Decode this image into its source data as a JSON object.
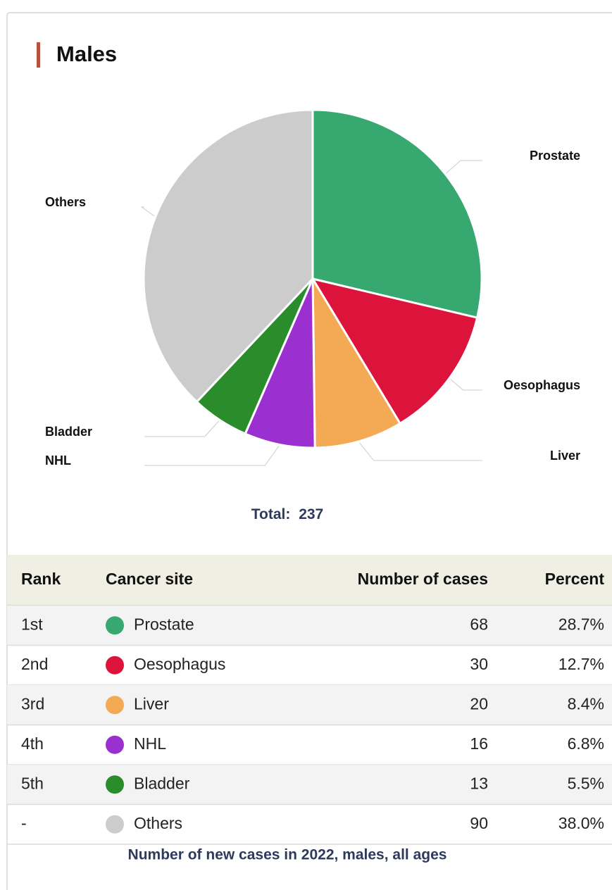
{
  "header": {
    "title": "Males"
  },
  "chart_data": {
    "type": "pie",
    "categories": [
      "Prostate",
      "Oesophagus",
      "Liver",
      "NHL",
      "Bladder",
      "Others"
    ],
    "values": [
      68,
      30,
      20,
      16,
      13,
      90
    ],
    "colors": [
      "#36a870",
      "#dc143c",
      "#f4a955",
      "#9b30d0",
      "#2a8c2a",
      "#cccccc"
    ]
  },
  "total": {
    "label": "Total:",
    "value": 237
  },
  "table": {
    "columns": [
      "Rank",
      "Cancer site",
      "Number of cases",
      "Percent"
    ],
    "rows": [
      [
        "1st",
        "Prostate",
        68,
        "28.7%"
      ],
      [
        "2nd",
        "Oesophagus",
        30,
        "12.7%"
      ],
      [
        "3rd",
        "Liver",
        20,
        "8.4%"
      ],
      [
        "4th",
        "NHL",
        16,
        "6.8%"
      ],
      [
        "5th",
        "Bladder",
        13,
        "5.5%"
      ],
      [
        "-",
        "Others",
        90,
        "38.0%"
      ]
    ]
  },
  "footnote": "Number of new cases in 2022, males, all ages"
}
